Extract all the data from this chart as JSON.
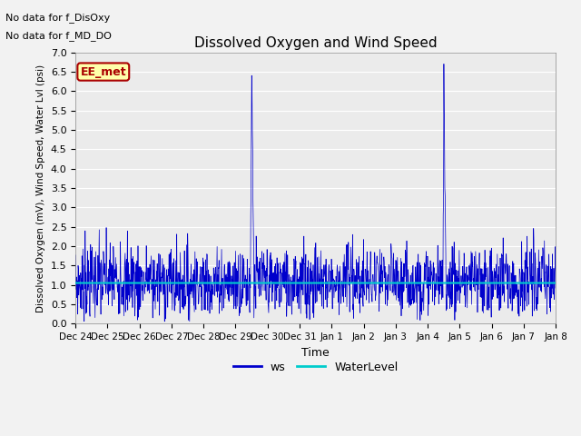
{
  "title": "Dissolved Oxygen and Wind Speed",
  "xlabel": "Time",
  "ylabel": "Dissolved Oxygen (mV), Wind Speed, Water Lvl (psi)",
  "ylim": [
    0.0,
    7.0
  ],
  "yticks": [
    0.0,
    0.5,
    1.0,
    1.5,
    2.0,
    2.5,
    3.0,
    3.5,
    4.0,
    4.5,
    5.0,
    5.5,
    6.0,
    6.5,
    7.0
  ],
  "xtick_labels": [
    "Dec 24",
    "Dec 25",
    "Dec 26",
    "Dec 27",
    "Dec 28",
    "Dec 29",
    "Dec 30",
    "Dec 31",
    "Jan 1",
    "Jan 2",
    "Jan 3",
    "Jan 4",
    "Jan 5",
    "Jan 6",
    "Jan 7",
    "Jan 8"
  ],
  "ws_color": "#0000CC",
  "water_level_color": "#00CCCC",
  "water_level_value": 1.05,
  "annotation_text1": "No data for f_DisOxy",
  "annotation_text2": "No data for f_MD_DO",
  "box_label": "EE_met",
  "box_facecolor": "#FFFFAA",
  "box_edgecolor": "#AA0000",
  "plot_bg_color": "#EBEBEB",
  "fig_bg_color": "#F2F2F2",
  "grid_color": "#FFFFFF",
  "num_days": 15,
  "n_points": 1500,
  "seed": 7
}
